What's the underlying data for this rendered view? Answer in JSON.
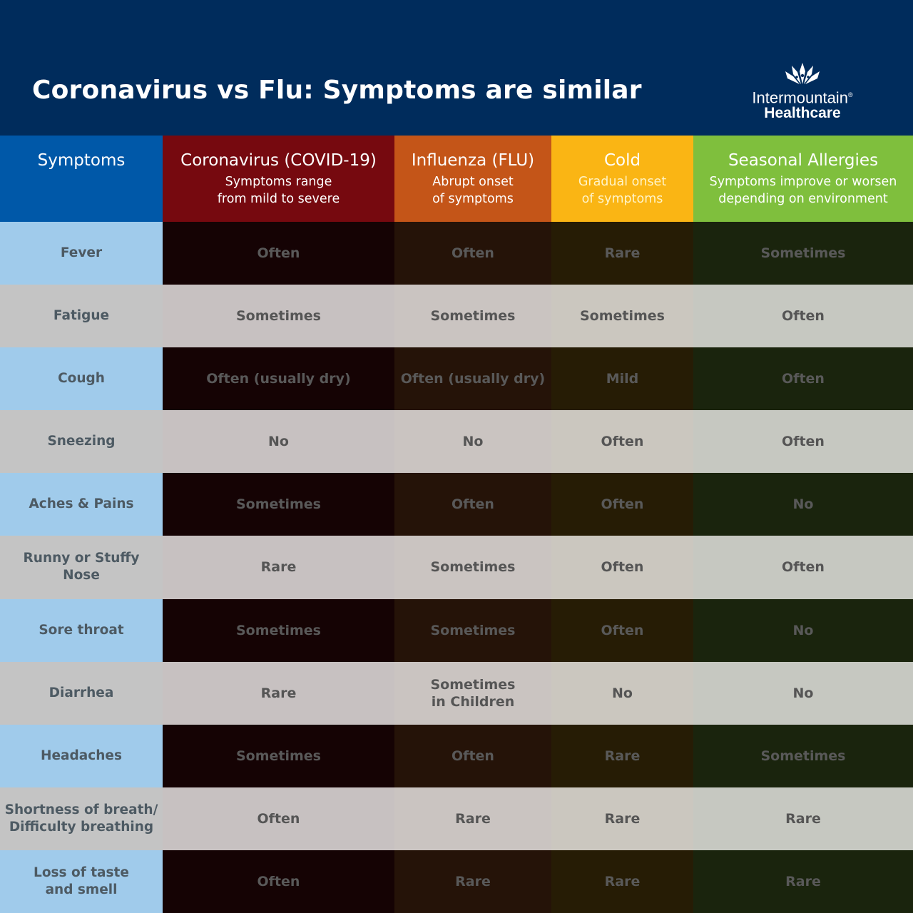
{
  "header": {
    "title": "Coronavirus vs Flu: Symptoms are similar",
    "logo": {
      "line1": "Intermountain",
      "line2": "Healthcare",
      "reg": "®",
      "icon": "intermountain-logo-icon"
    }
  },
  "columns": [
    {
      "name": "Symptoms",
      "sub1": "",
      "sub2": ""
    },
    {
      "name": "Coronavirus (COVID-19)",
      "sub1": "Symptoms range",
      "sub2": "from mild to severe",
      "color": "#76090f"
    },
    {
      "name": "Influenza (FLU)",
      "sub1": "Abrupt onset",
      "sub2": "of symptoms",
      "color": "#c45518"
    },
    {
      "name": "Cold",
      "sub1": "Gradual onset",
      "sub2": "of symptoms",
      "color": "#fab514"
    },
    {
      "name": "Seasonal Allergies",
      "sub1": "Symptoms improve or worsen",
      "sub2": "depending on environment",
      "color": "#7fbf3d"
    }
  ],
  "rows": [
    {
      "symptom": [
        "Fever"
      ],
      "values": [
        [
          "Often"
        ],
        [
          "Often"
        ],
        [
          "Rare"
        ],
        [
          "Sometimes"
        ]
      ]
    },
    {
      "symptom": [
        "Fatigue"
      ],
      "values": [
        [
          "Sometimes"
        ],
        [
          "Sometimes"
        ],
        [
          "Sometimes"
        ],
        [
          "Often"
        ]
      ]
    },
    {
      "symptom": [
        "Cough"
      ],
      "values": [
        [
          "Often (usually dry)"
        ],
        [
          "Often (usually dry)"
        ],
        [
          "Mild"
        ],
        [
          "Often"
        ]
      ]
    },
    {
      "symptom": [
        "Sneezing"
      ],
      "values": [
        [
          "No"
        ],
        [
          "No"
        ],
        [
          "Often"
        ],
        [
          "Often"
        ]
      ]
    },
    {
      "symptom": [
        "Aches & Pains"
      ],
      "values": [
        [
          "Sometimes"
        ],
        [
          "Often"
        ],
        [
          "Often"
        ],
        [
          "No"
        ]
      ]
    },
    {
      "symptom": [
        "Runny or Stuffy Nose"
      ],
      "values": [
        [
          "Rare"
        ],
        [
          "Sometimes"
        ],
        [
          "Often"
        ],
        [
          "Often"
        ]
      ]
    },
    {
      "symptom": [
        "Sore throat"
      ],
      "values": [
        [
          "Sometimes"
        ],
        [
          "Sometimes"
        ],
        [
          "Often"
        ],
        [
          "No"
        ]
      ]
    },
    {
      "symptom": [
        "Diarrhea"
      ],
      "values": [
        [
          "Rare"
        ],
        [
          "Sometimes",
          "in Children"
        ],
        [
          "No"
        ],
        [
          "No"
        ]
      ]
    },
    {
      "symptom": [
        "Headaches"
      ],
      "values": [
        [
          "Sometimes"
        ],
        [
          "Often"
        ],
        [
          "Rare"
        ],
        [
          "Sometimes"
        ]
      ]
    },
    {
      "symptom": [
        "Shortness of breath/",
        "Difficulty breathing"
      ],
      "values": [
        [
          "Often"
        ],
        [
          "Rare"
        ],
        [
          "Rare"
        ],
        [
          "Rare"
        ]
      ]
    },
    {
      "symptom": [
        "Loss of taste",
        "and smell"
      ],
      "values": [
        [
          "Often"
        ],
        [
          "Rare"
        ],
        [
          "Rare"
        ],
        [
          "Rare"
        ]
      ]
    }
  ]
}
